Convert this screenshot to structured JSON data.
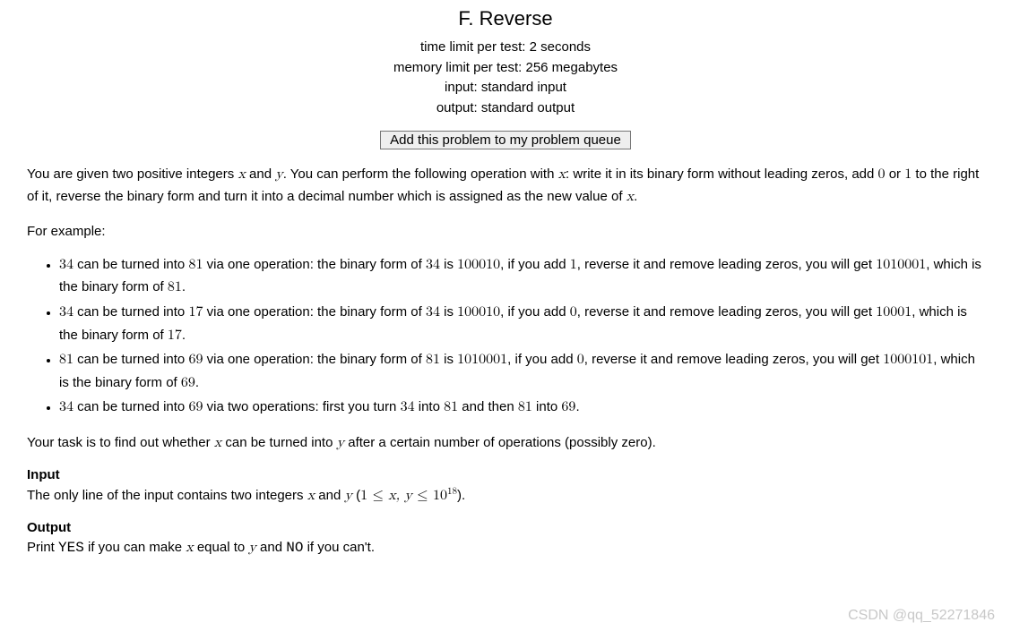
{
  "header": {
    "title": "F. Reverse",
    "time_limit": "time limit per test: 2 seconds",
    "memory_limit": "memory limit per test: 256 megabytes",
    "input": "input: standard input",
    "output": "output: standard output",
    "queue_button": "Add this problem to my problem queue"
  },
  "statement": {
    "p1_1": "You are given two positive integers ",
    "p1_x": "x",
    "p1_2": " and ",
    "p1_y": "y",
    "p1_3": ". You can perform the following operation with ",
    "p1_x2": "x",
    "p1_4": ": write it in its binary form without leading zeros, add ",
    "p1_zero": "0",
    "p1_5": " or ",
    "p1_one": "1",
    "p1_6": " to the right of it, reverse the binary form and turn it into a decimal number which is assigned as the new value of ",
    "p1_x3": "x",
    "p1_7": ".",
    "p2": "For example:"
  },
  "examples": {
    "li1": {
      "a": "34",
      "t1": " can be turned into ",
      "b": "81",
      "t2": " via one operation: the binary form of ",
      "c": "34",
      "t3": " is ",
      "d": "100010",
      "t4": ", if you add ",
      "e": "1",
      "t5": ", reverse it and remove leading zeros, you will get ",
      "f": "1010001",
      "t6": ", which is the binary form of ",
      "g": "81",
      "t7": "."
    },
    "li2": {
      "a": "34",
      "t1": " can be turned into ",
      "b": "17",
      "t2": " via one operation: the binary form of ",
      "c": "34",
      "t3": " is ",
      "d": "100010",
      "t4": ", if you add ",
      "e": "0",
      "t5": ", reverse it and remove leading zeros, you will get ",
      "f": "10001",
      "t6": ", which is the binary form of ",
      "g": "17",
      "t7": "."
    },
    "li3": {
      "a": "81",
      "t1": " can be turned into ",
      "b": "69",
      "t2": " via one operation: the binary form of ",
      "c": "81",
      "t3": " is ",
      "d": "1010001",
      "t4": ", if you add ",
      "e": "0",
      "t5": ", reverse it and remove leading zeros, you will get ",
      "f": "1000101",
      "t6": ", which is the binary form of ",
      "g": "69",
      "t7": "."
    },
    "li4": {
      "a": "34",
      "t1": " can be turned into ",
      "b": "69",
      "t2": " via two operations: first you turn ",
      "c": "34",
      "t3": " into ",
      "d": "81",
      "t4": " and then ",
      "e": "81",
      "t5": " into ",
      "f": "69",
      "t6": "."
    }
  },
  "task": {
    "t1": "Your task is to find out whether ",
    "x": "x",
    "t2": " can be turned into ",
    "y": "y",
    "t3": " after a certain number of operations (possibly zero)."
  },
  "input_section": {
    "title": "Input",
    "t1": "The only line of the input contains two integers ",
    "x": "x",
    "t2": " and ",
    "y": "y",
    "t3": " (",
    "cond1": "1 ≤ ",
    "cond2": "x, y",
    "cond3": " ≤ 10",
    "exp": "18",
    "t4": ")."
  },
  "output_section": {
    "title": "Output",
    "t1": "Print ",
    "yes": "YES",
    "t2": " if you can make ",
    "x": "x",
    "t3": " equal to ",
    "y": "y",
    "t4": " and ",
    "no": "NO",
    "t5": " if you can't."
  },
  "watermark": "CSDN @qq_52271846"
}
